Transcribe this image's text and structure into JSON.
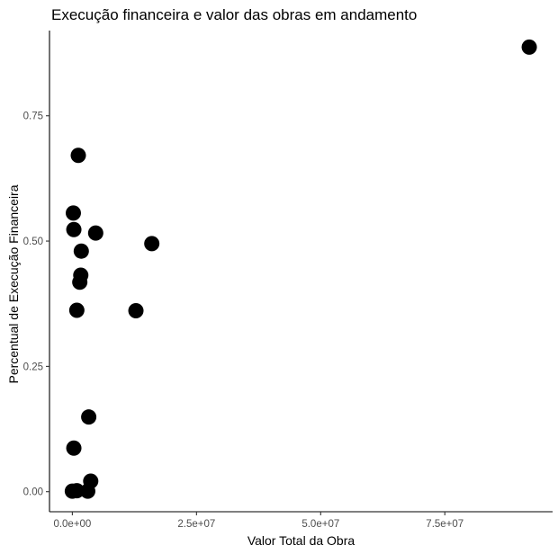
{
  "chart_data": {
    "type": "scatter",
    "title": "Execução financeira e valor das obras em andamento",
    "xlabel": "Valor Total da Obra",
    "ylabel": "Percentual de Execução Financeira",
    "xlim": [
      -4600000,
      96700000
    ],
    "ylim": [
      -0.04,
      0.92
    ],
    "x_ticks": [
      {
        "value": 0,
        "label": "0.0e+00"
      },
      {
        "value": 25000000,
        "label": "2.5e+07"
      },
      {
        "value": 50000000,
        "label": "5.0e+07"
      },
      {
        "value": 75000000,
        "label": "7.5e+07"
      }
    ],
    "y_ticks": [
      {
        "value": 0,
        "label": "0.00"
      },
      {
        "value": 0.25,
        "label": "0.25"
      },
      {
        "value": 0.5,
        "label": "0.50"
      },
      {
        "value": 0.75,
        "label": "0.75"
      }
    ],
    "grid": false,
    "legend": "none",
    "point_color": "#000000",
    "points": [
      {
        "x": 92000000,
        "y": 0.887
      },
      {
        "x": 1200000,
        "y": 0.671
      },
      {
        "x": 200000,
        "y": 0.556
      },
      {
        "x": 300000,
        "y": 0.523
      },
      {
        "x": 4700000,
        "y": 0.516
      },
      {
        "x": 16000000,
        "y": 0.495
      },
      {
        "x": 1800000,
        "y": 0.48
      },
      {
        "x": 1700000,
        "y": 0.432
      },
      {
        "x": 1500000,
        "y": 0.418
      },
      {
        "x": 900000,
        "y": 0.362
      },
      {
        "x": 12800000,
        "y": 0.361
      },
      {
        "x": 3300000,
        "y": 0.149
      },
      {
        "x": 300000,
        "y": 0.087
      },
      {
        "x": 3700000,
        "y": 0.021
      },
      {
        "x": 0,
        "y": 0.001
      },
      {
        "x": 900000,
        "y": 0.002
      },
      {
        "x": 3100000,
        "y": 0.001
      }
    ]
  }
}
